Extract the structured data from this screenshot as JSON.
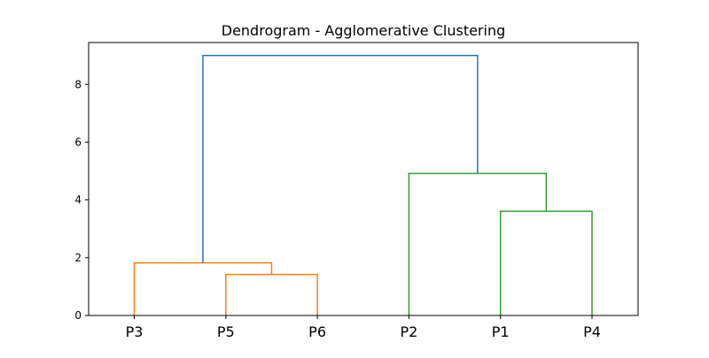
{
  "chart_data": {
    "type": "dendrogram",
    "title": "Dendrogram - Agglomerative Clustering",
    "xlabel": "",
    "ylabel": "",
    "leaves": [
      "P3",
      "P5",
      "P6",
      "P2",
      "P1",
      "P4"
    ],
    "ylim": [
      0,
      9.45
    ],
    "yticks": [
      0,
      2,
      4,
      6,
      8
    ],
    "grid": false,
    "merges": [
      {
        "left": "P5",
        "right": "P6",
        "height": 1.42,
        "color": "#ff7f0e"
      },
      {
        "left": "P3",
        "right": "P5+P6",
        "height": 1.82,
        "color": "#ff7f0e"
      },
      {
        "left": "P1",
        "right": "P4",
        "height": 3.61,
        "color": "#2ca02c"
      },
      {
        "left": "P2",
        "right": "P1+P4",
        "height": 4.92,
        "color": "#2ca02c"
      },
      {
        "left": "P3+P5+P6",
        "right": "P2+P1+P4",
        "height": 9.0,
        "color": "#1f77b4"
      }
    ]
  }
}
